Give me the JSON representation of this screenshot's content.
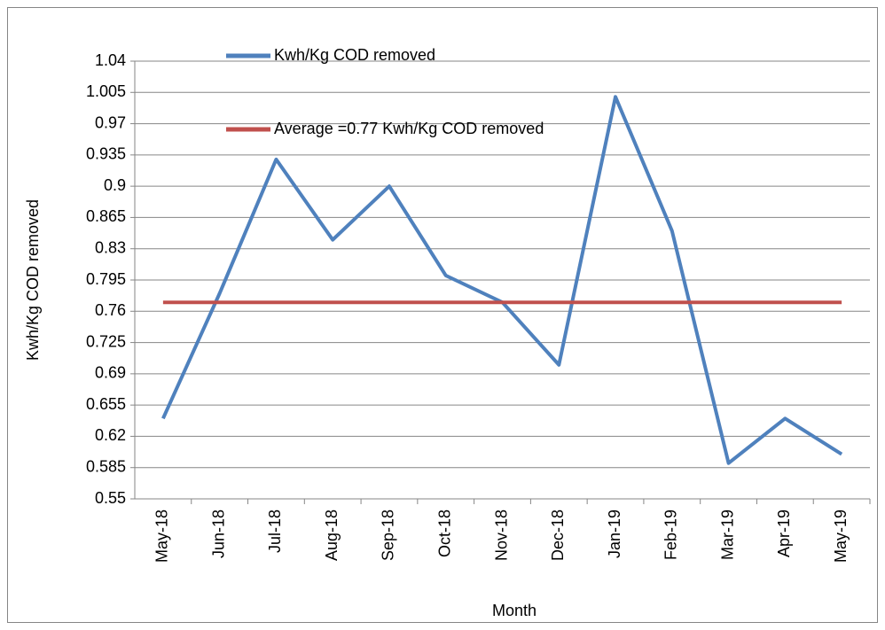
{
  "chart_data": {
    "type": "line",
    "x_label": "Month",
    "y_label": "Kwh/Kg COD removed",
    "categories": [
      "May-18",
      "Jun-18",
      "Jul-18",
      "Aug-18",
      "Sep-18",
      "Oct-18",
      "Nov-18",
      "Dec-18",
      "Jan-19",
      "Feb-19",
      "Mar-19",
      "Apr-19",
      "May-19"
    ],
    "series": [
      {
        "name": "Kwh/Kg COD removed",
        "color": "#4f81bd",
        "values": [
          0.64,
          0.78,
          0.93,
          0.84,
          0.9,
          0.8,
          0.77,
          0.7,
          1.0,
          0.85,
          0.59,
          0.64,
          0.6
        ]
      },
      {
        "name": "Average =0.77 Kwh/Kg COD removed",
        "color": "#c0504d",
        "values": [
          0.77,
          0.77,
          0.77,
          0.77,
          0.77,
          0.77,
          0.77,
          0.77,
          0.77,
          0.77,
          0.77,
          0.77,
          0.77
        ]
      }
    ],
    "ylim": [
      0.55,
      1.04
    ],
    "yticks": [
      0.55,
      0.585,
      0.62,
      0.655,
      0.69,
      0.725,
      0.76,
      0.795,
      0.83,
      0.865,
      0.9,
      0.935,
      0.97,
      1.005,
      1.04
    ],
    "grid": true
  }
}
